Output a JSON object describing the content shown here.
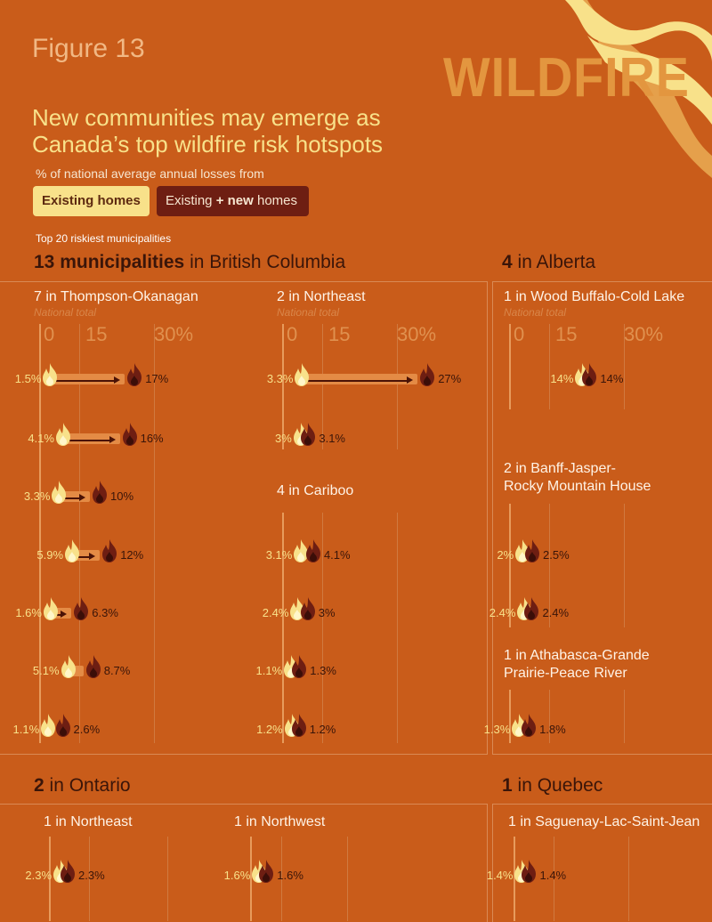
{
  "figure_label": "Figure 13",
  "brand": "WILDFIRE",
  "title_line1": "New communities may emerge as",
  "title_line2": "Canada’s top wildfire risk hotspots",
  "subtitle": "% of national average annual losses from",
  "legend": {
    "existing": "Existing homes",
    "new_pre": "Existing ",
    "new_plus": "+ new",
    "new_post": " homes"
  },
  "section_heading": "Top 20 riskiest municipalities",
  "regions": {
    "bc": {
      "bold": "13 municipalities",
      "rest": " in British Columbia"
    },
    "ab": {
      "bold": "4",
      "rest": " in Alberta"
    },
    "on": {
      "bold": "2",
      "rest": " in Ontario"
    },
    "qc": {
      "bold": "1",
      "rest": " in Quebec"
    }
  },
  "national_total": "National total",
  "ticks": [
    "0",
    "15",
    "30%"
  ],
  "colors": {
    "background": "#C95C1A",
    "existing": "#F8E18A",
    "existing_plus_new": "#6E1E12",
    "title": "#F8E18A"
  },
  "chart_data": {
    "type": "dot-plot",
    "title": "New communities may emerge as Canada’s top wildfire risk hotspots",
    "subtitle": "% of national average annual losses from",
    "series_names": [
      "Existing homes",
      "Existing + new homes"
    ],
    "xlim": [
      0,
      30
    ],
    "xticks": [
      "0",
      "15",
      "30%"
    ],
    "groups": [
      {
        "region": "British Columbia",
        "subregion": "7 in Thompson-Okanagan",
        "pairs": [
          {
            "existing": 1.5,
            "existing_label": "1.5%",
            "new": 17,
            "new_label": "17%"
          },
          {
            "existing": 4.1,
            "existing_label": "4.1%",
            "new": 16,
            "new_label": "16%"
          },
          {
            "existing": 3.3,
            "existing_label": "3.3%",
            "new": 10,
            "new_label": "10%"
          },
          {
            "existing": 5.9,
            "existing_label": "5.9%",
            "new": 12,
            "new_label": "12%"
          },
          {
            "existing": 1.6,
            "existing_label": "1.6%",
            "new": 6.3,
            "new_label": "6.3%"
          },
          {
            "existing": 5.1,
            "existing_label": "5.1%",
            "new": 8.7,
            "new_label": "8.7%"
          },
          {
            "existing": 1.1,
            "existing_label": "1.1%",
            "new": 2.6,
            "new_label": "2.6%"
          }
        ]
      },
      {
        "region": "British Columbia",
        "subregion": "2 in Northeast",
        "pairs": [
          {
            "existing": 3.3,
            "existing_label": "3.3%",
            "new": 27,
            "new_label": "27%"
          },
          {
            "existing": 3,
            "existing_label": "3%",
            "new": 3.1,
            "new_label": "3.1%"
          }
        ]
      },
      {
        "region": "British Columbia",
        "subregion": "4 in Cariboo",
        "pairs": [
          {
            "existing": 3.1,
            "existing_label": "3.1%",
            "new": 4.1,
            "new_label": "4.1%"
          },
          {
            "existing": 2.4,
            "existing_label": "2.4%",
            "new": 3,
            "new_label": "3%"
          },
          {
            "existing": 1.1,
            "existing_label": "1.1%",
            "new": 1.3,
            "new_label": "1.3%"
          },
          {
            "existing": 1.2,
            "existing_label": "1.2%",
            "new": 1.2,
            "new_label": "1.2%"
          }
        ]
      },
      {
        "region": "Alberta",
        "subregion": "1 in Wood Buffalo-Cold Lake",
        "pairs": [
          {
            "existing": 14,
            "existing_label": "14%",
            "new": 14,
            "new_label": "14%"
          }
        ]
      },
      {
        "region": "Alberta",
        "subregion": "2 in Banff-Jasper-Rocky Mountain House",
        "pairs": [
          {
            "existing": 2,
            "existing_label": "2%",
            "new": 2.5,
            "new_label": "2.5%"
          },
          {
            "existing": 2.4,
            "existing_label": "2.4%",
            "new": 2.4,
            "new_label": "2.4%"
          }
        ]
      },
      {
        "region": "Alberta",
        "subregion": "1 in Athabasca-Grande Prairie-Peace River",
        "pairs": [
          {
            "existing": 1.3,
            "existing_label": "1.3%",
            "new": 1.8,
            "new_label": "1.8%"
          }
        ]
      },
      {
        "region": "Ontario",
        "subregion": "1 in Northeast",
        "pairs": [
          {
            "existing": 2.3,
            "existing_label": "2.3%",
            "new": 2.3,
            "new_label": "2.3%"
          }
        ]
      },
      {
        "region": "Ontario",
        "subregion": "1 in Northwest",
        "pairs": [
          {
            "existing": 1.6,
            "existing_label": "1.6%",
            "new": 1.6,
            "new_label": "1.6%"
          }
        ]
      },
      {
        "region": "Quebec",
        "subregion": "1 in Saguenay-Lac-Saint-Jean",
        "pairs": [
          {
            "existing": 1.4,
            "existing_label": "1.4%",
            "new": 1.4,
            "new_label": "1.4%"
          }
        ]
      }
    ]
  }
}
